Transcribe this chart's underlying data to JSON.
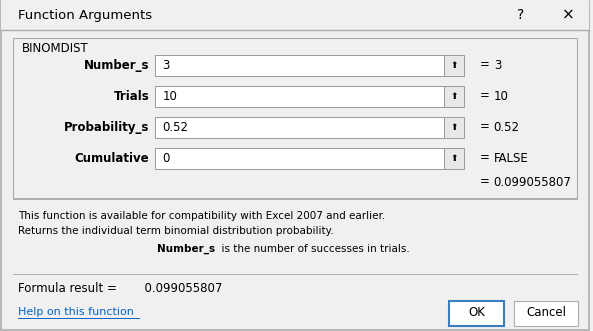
{
  "title": "Function Arguments",
  "func_name": "BINOMDIST",
  "fields": [
    {
      "label": "Number_s",
      "value": "3",
      "result": "3"
    },
    {
      "label": "Trials",
      "value": "10",
      "result": "10"
    },
    {
      "label": "Probability_s",
      "value": "0.52",
      "result": "0.52"
    },
    {
      "label": "Cumulative",
      "value": "0",
      "result": "FALSE"
    }
  ],
  "formula_result_value": "0.099055807",
  "desc_line1": "This function is available for compatibility with Excel 2007 and earlier.",
  "desc_line2": "Returns the individual term binomial distribution probability.",
  "desc_bold": "Number_s",
  "desc_rest": "  is the number of successes in trials.",
  "formula_label": "Formula result =",
  "formula_value": "  0.099055807",
  "help_text": "Help on this function",
  "ok_text": "OK",
  "cancel_text": "Cancel",
  "bg_color": "#f0f0f0",
  "dialog_bg": "#f0f0f0",
  "input_bg": "#ffffff",
  "border_color": "#adadad",
  "blue_border": "#3a7ebf",
  "link_color": "#0563c1",
  "section_border": "#adadad",
  "arrow_bg": "#e8e8e8"
}
